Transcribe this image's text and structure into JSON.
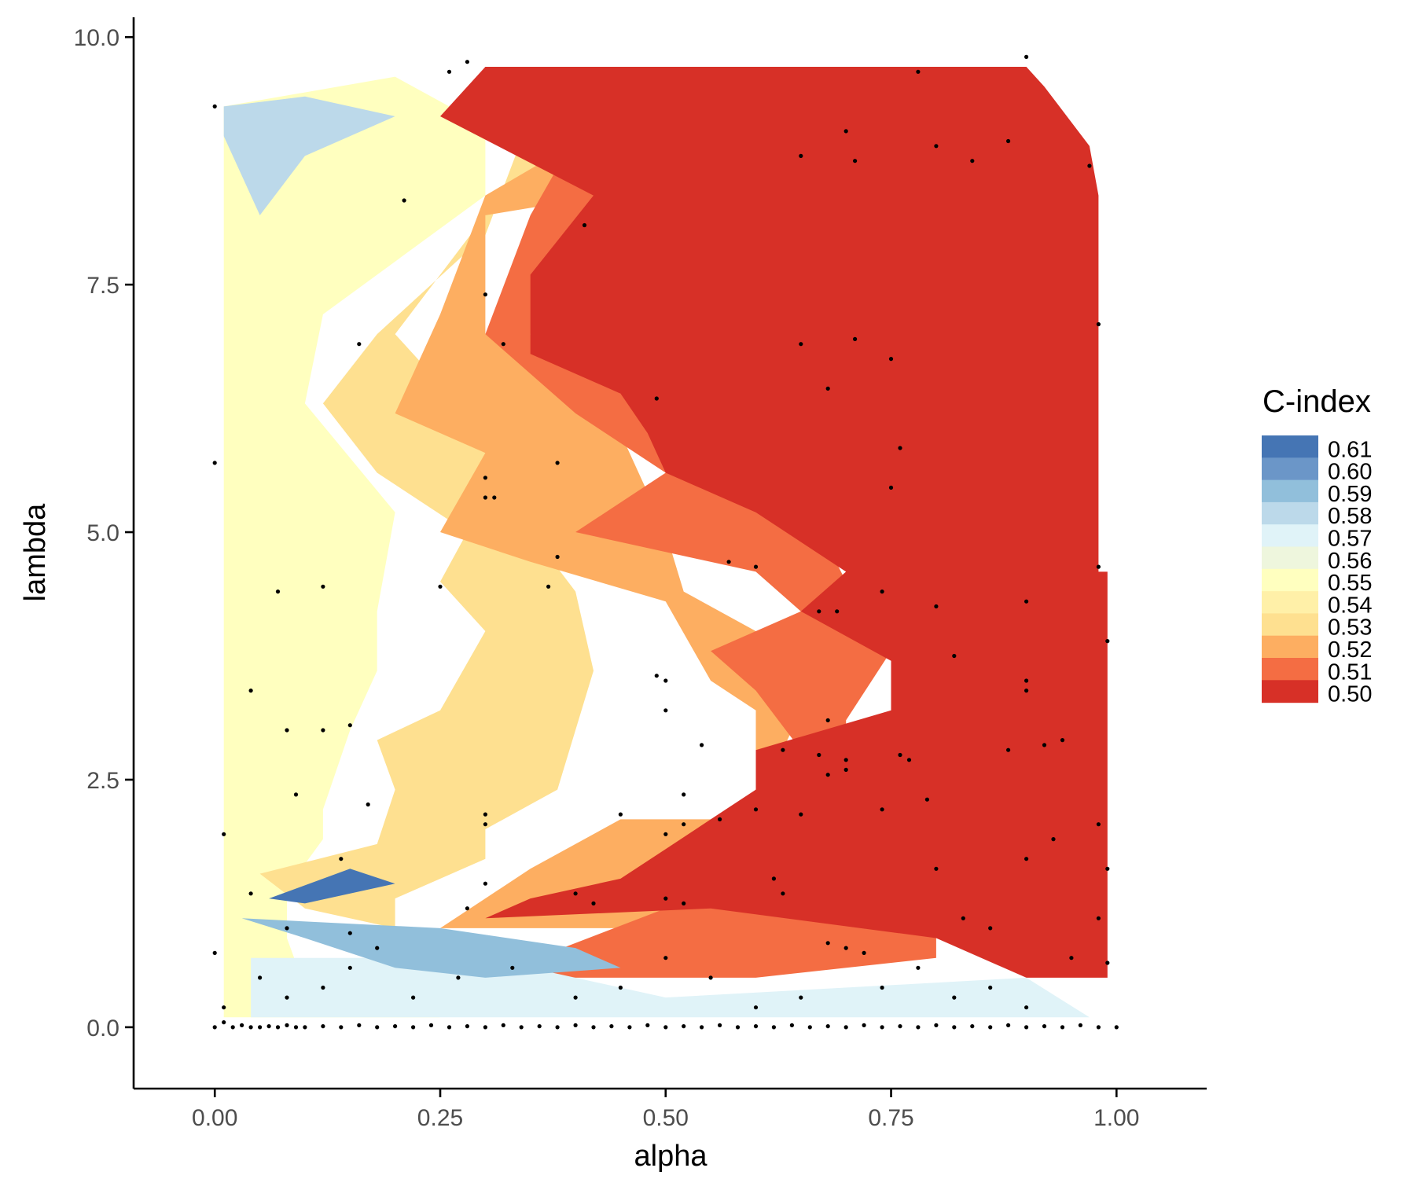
{
  "chart_data": {
    "type": "heatmap",
    "subtype": "filled contour with scatter points",
    "title": "",
    "xlabel": "alpha",
    "ylabel": "lambda",
    "xlim": [
      -0.09,
      1.1
    ],
    "ylim": [
      -0.62,
      10.2
    ],
    "x_ticks": [
      0.0,
      0.25,
      0.5,
      0.75,
      1.0
    ],
    "x_tick_labels": [
      "0.00",
      "0.25",
      "0.50",
      "0.75",
      "1.00"
    ],
    "y_ticks": [
      0.0,
      2.5,
      5.0,
      7.5,
      10.0
    ],
    "y_tick_labels": [
      "0.0",
      "2.5",
      "5.0",
      "7.5",
      "10.0"
    ],
    "grid": false,
    "legend": {
      "title": "C-index",
      "placement": "right",
      "levels": [
        {
          "label": "0.61",
          "color": "#4575b4"
        },
        {
          "label": "0.60",
          "color": "#6b96c8"
        },
        {
          "label": "0.59",
          "color": "#91bfdb"
        },
        {
          "label": "0.58",
          "color": "#bcd9ea"
        },
        {
          "label": "0.57",
          "color": "#e0f3f8"
        },
        {
          "label": "0.56",
          "color": "#eef6dd"
        },
        {
          "label": "0.55",
          "color": "#ffffbf"
        },
        {
          "label": "0.54",
          "color": "#fff0a8"
        },
        {
          "label": "0.53",
          "color": "#fee090"
        },
        {
          "label": "0.52",
          "color": "#fdae61"
        },
        {
          "label": "0.51",
          "color": "#f46d43"
        },
        {
          "label": "0.50",
          "color": "#d73027"
        }
      ]
    },
    "contour_bands": [
      {
        "level": "0.55",
        "color": "#ffffbf",
        "polygon": [
          [
            0.01,
            0.1
          ],
          [
            0.01,
            9.3
          ],
          [
            0.2,
            9.6
          ],
          [
            0.3,
            9.1
          ],
          [
            0.3,
            8.4
          ],
          [
            0.12,
            7.2
          ],
          [
            0.1,
            6.3
          ],
          [
            0.2,
            5.2
          ],
          [
            0.18,
            4.2
          ],
          [
            0.18,
            3.6
          ],
          [
            0.15,
            3.0
          ],
          [
            0.12,
            2.2
          ],
          [
            0.12,
            1.9
          ],
          [
            0.08,
            1.4
          ],
          [
            0.08,
            0.9
          ],
          [
            0.1,
            0.4
          ],
          [
            0.2,
            0.2
          ],
          [
            0.25,
            0.1
          ]
        ]
      },
      {
        "level": "0.53",
        "color": "#fee090",
        "polygon": [
          [
            0.05,
            1.55
          ],
          [
            0.18,
            1.85
          ],
          [
            0.2,
            2.4
          ],
          [
            0.18,
            2.9
          ],
          [
            0.25,
            3.2
          ],
          [
            0.3,
            4.0
          ],
          [
            0.25,
            4.5
          ],
          [
            0.28,
            5.0
          ],
          [
            0.18,
            5.6
          ],
          [
            0.12,
            6.3
          ],
          [
            0.18,
            7.0
          ],
          [
            0.3,
            8.0
          ],
          [
            0.35,
            9.2
          ],
          [
            0.6,
            9.1
          ],
          [
            0.5,
            8.9
          ],
          [
            0.3,
            8.2
          ],
          [
            0.2,
            7.0
          ],
          [
            0.3,
            6.0
          ],
          [
            0.35,
            5.0
          ],
          [
            0.4,
            4.4
          ],
          [
            0.42,
            3.6
          ],
          [
            0.38,
            2.4
          ],
          [
            0.3,
            2.0
          ],
          [
            0.3,
            1.7
          ],
          [
            0.2,
            1.3
          ],
          [
            0.2,
            1.0
          ],
          [
            0.1,
            1.2
          ]
        ]
      },
      {
        "level": "0.52",
        "color": "#fdae61",
        "polygon": [
          [
            0.25,
            1.0
          ],
          [
            0.35,
            1.6
          ],
          [
            0.45,
            2.1
          ],
          [
            0.6,
            2.1
          ],
          [
            0.6,
            3.2
          ],
          [
            0.55,
            3.5
          ],
          [
            0.5,
            4.3
          ],
          [
            0.35,
            4.7
          ],
          [
            0.25,
            5.0
          ],
          [
            0.3,
            5.8
          ],
          [
            0.2,
            6.2
          ],
          [
            0.25,
            7.2
          ],
          [
            0.3,
            8.4
          ],
          [
            0.45,
            9.2
          ],
          [
            0.62,
            9.3
          ],
          [
            0.7,
            9.0
          ],
          [
            0.5,
            8.5
          ],
          [
            0.3,
            8.2
          ],
          [
            0.3,
            7.0
          ],
          [
            0.45,
            6.0
          ],
          [
            0.5,
            5.0
          ],
          [
            0.52,
            4.4
          ],
          [
            0.6,
            4.0
          ],
          [
            0.65,
            3.2
          ],
          [
            0.62,
            2.6
          ],
          [
            0.6,
            2.0
          ],
          [
            0.5,
            1.6
          ],
          [
            0.5,
            1.0
          ]
        ]
      },
      {
        "level": "0.51",
        "color": "#f46d43",
        "polygon": [
          [
            0.3,
            0.5
          ],
          [
            0.5,
            1.2
          ],
          [
            0.6,
            1.6
          ],
          [
            0.55,
            2.0
          ],
          [
            0.6,
            2.4
          ],
          [
            0.65,
            2.8
          ],
          [
            0.6,
            3.4
          ],
          [
            0.55,
            3.8
          ],
          [
            0.65,
            4.2
          ],
          [
            0.6,
            4.6
          ],
          [
            0.4,
            5.0
          ],
          [
            0.5,
            5.6
          ],
          [
            0.4,
            6.2
          ],
          [
            0.3,
            7.0
          ],
          [
            0.35,
            8.2
          ],
          [
            0.4,
            9.0
          ],
          [
            0.55,
            9.5
          ],
          [
            0.7,
            9.2
          ],
          [
            0.6,
            8.8
          ],
          [
            0.45,
            8.3
          ],
          [
            0.35,
            7.0
          ],
          [
            0.5,
            6.1
          ],
          [
            0.65,
            5.4
          ],
          [
            0.7,
            4.5
          ],
          [
            0.75,
            3.8
          ],
          [
            0.7,
            3.1
          ],
          [
            0.7,
            2.4
          ],
          [
            0.8,
            1.8
          ],
          [
            0.8,
            0.7
          ],
          [
            0.6,
            0.5
          ]
        ]
      },
      {
        "level": "0.50",
        "color": "#d73027",
        "polygon": [
          [
            0.3,
            1.1
          ],
          [
            0.55,
            1.2
          ],
          [
            0.8,
            0.9
          ],
          [
            0.9,
            0.5
          ],
          [
            0.99,
            0.5
          ],
          [
            0.99,
            4.6
          ],
          [
            0.98,
            4.6
          ],
          [
            0.98,
            8.4
          ],
          [
            0.97,
            8.9
          ],
          [
            0.92,
            9.5
          ],
          [
            0.9,
            9.7
          ],
          [
            0.3,
            9.7
          ],
          [
            0.25,
            9.2
          ],
          [
            0.42,
            8.4
          ],
          [
            0.35,
            7.6
          ],
          [
            0.35,
            6.8
          ],
          [
            0.45,
            6.4
          ],
          [
            0.48,
            6.0
          ],
          [
            0.5,
            5.6
          ],
          [
            0.6,
            5.2
          ],
          [
            0.7,
            4.6
          ],
          [
            0.65,
            4.2
          ],
          [
            0.75,
            3.7
          ],
          [
            0.75,
            3.2
          ],
          [
            0.6,
            2.8
          ],
          [
            0.6,
            2.4
          ],
          [
            0.55,
            2.1
          ],
          [
            0.5,
            1.8
          ],
          [
            0.45,
            1.5
          ],
          [
            0.35,
            1.3
          ]
        ]
      },
      {
        "level": "0.57",
        "color": "#e0f3f8",
        "polygon": [
          [
            0.04,
            0.1
          ],
          [
            0.04,
            0.7
          ],
          [
            0.3,
            0.7
          ],
          [
            0.5,
            0.3
          ],
          [
            0.9,
            0.5
          ],
          [
            0.97,
            0.1
          ]
        ]
      },
      {
        "level": "0.59",
        "color": "#91bfdb",
        "polygon": [
          [
            0.03,
            1.1
          ],
          [
            0.25,
            1.0
          ],
          [
            0.4,
            0.8
          ],
          [
            0.45,
            0.6
          ],
          [
            0.3,
            0.5
          ],
          [
            0.2,
            0.6
          ],
          [
            0.1,
            0.9
          ]
        ]
      },
      {
        "level": "0.61",
        "color": "#4575b4",
        "polygon": [
          [
            0.06,
            1.3
          ],
          [
            0.15,
            1.6
          ],
          [
            0.2,
            1.45
          ],
          [
            0.1,
            1.25
          ]
        ]
      },
      {
        "level": "0.58",
        "color": "#bcd9ea",
        "polygon": [
          [
            0.01,
            9.0
          ],
          [
            0.01,
            9.3
          ],
          [
            0.1,
            9.4
          ],
          [
            0.2,
            9.2
          ],
          [
            0.1,
            8.8
          ],
          [
            0.05,
            8.2
          ]
        ]
      }
    ],
    "scatter_points": [
      [
        0.0,
        0.0
      ],
      [
        0.01,
        0.05
      ],
      [
        0.02,
        0.0
      ],
      [
        0.03,
        0.02
      ],
      [
        0.04,
        0.0
      ],
      [
        0.05,
        0.0
      ],
      [
        0.06,
        0.01
      ],
      [
        0.07,
        0.0
      ],
      [
        0.08,
        0.02
      ],
      [
        0.09,
        0.0
      ],
      [
        0.1,
        0.0
      ],
      [
        0.12,
        0.01
      ],
      [
        0.14,
        0.0
      ],
      [
        0.16,
        0.02
      ],
      [
        0.18,
        0.0
      ],
      [
        0.2,
        0.01
      ],
      [
        0.22,
        0.0
      ],
      [
        0.24,
        0.02
      ],
      [
        0.26,
        0.0
      ],
      [
        0.28,
        0.01
      ],
      [
        0.3,
        0.0
      ],
      [
        0.32,
        0.02
      ],
      [
        0.34,
        0.0
      ],
      [
        0.36,
        0.01
      ],
      [
        0.38,
        0.0
      ],
      [
        0.4,
        0.02
      ],
      [
        0.42,
        0.0
      ],
      [
        0.44,
        0.01
      ],
      [
        0.46,
        0.0
      ],
      [
        0.48,
        0.02
      ],
      [
        0.5,
        0.0
      ],
      [
        0.52,
        0.01
      ],
      [
        0.54,
        0.0
      ],
      [
        0.56,
        0.02
      ],
      [
        0.58,
        0.0
      ],
      [
        0.6,
        0.01
      ],
      [
        0.62,
        0.0
      ],
      [
        0.64,
        0.02
      ],
      [
        0.66,
        0.0
      ],
      [
        0.68,
        0.01
      ],
      [
        0.7,
        0.0
      ],
      [
        0.72,
        0.02
      ],
      [
        0.74,
        0.0
      ],
      [
        0.76,
        0.01
      ],
      [
        0.78,
        0.0
      ],
      [
        0.8,
        0.02
      ],
      [
        0.82,
        0.0
      ],
      [
        0.84,
        0.01
      ],
      [
        0.86,
        0.0
      ],
      [
        0.88,
        0.02
      ],
      [
        0.9,
        0.0
      ],
      [
        0.92,
        0.01
      ],
      [
        0.94,
        0.0
      ],
      [
        0.96,
        0.02
      ],
      [
        0.98,
        0.0
      ],
      [
        1.0,
        0.0
      ],
      [
        0.01,
        0.2
      ],
      [
        0.05,
        0.5
      ],
      [
        0.08,
        0.3
      ],
      [
        0.12,
        0.4
      ],
      [
        0.15,
        0.6
      ],
      [
        0.18,
        0.8
      ],
      [
        0.22,
        0.3
      ],
      [
        0.27,
        0.5
      ],
      [
        0.33,
        0.6
      ],
      [
        0.4,
        0.3
      ],
      [
        0.45,
        0.4
      ],
      [
        0.5,
        0.7
      ],
      [
        0.55,
        0.5
      ],
      [
        0.6,
        0.2
      ],
      [
        0.65,
        0.3
      ],
      [
        0.7,
        0.8
      ],
      [
        0.74,
        0.4
      ],
      [
        0.78,
        0.6
      ],
      [
        0.82,
        0.3
      ],
      [
        0.86,
        0.4
      ],
      [
        0.9,
        0.2
      ],
      [
        0.95,
        0.7
      ],
      [
        0.99,
        0.65
      ],
      [
        0.0,
        0.75
      ],
      [
        0.08,
        1.0
      ],
      [
        0.14,
        1.7
      ],
      [
        0.04,
        1.35
      ],
      [
        0.15,
        0.95
      ],
      [
        0.28,
        1.2
      ],
      [
        0.3,
        1.45
      ],
      [
        0.4,
        1.35
      ],
      [
        0.42,
        1.25
      ],
      [
        0.5,
        1.3
      ],
      [
        0.52,
        1.25
      ],
      [
        0.62,
        1.5
      ],
      [
        0.63,
        1.35
      ],
      [
        0.68,
        0.85
      ],
      [
        0.72,
        0.75
      ],
      [
        0.8,
        1.6
      ],
      [
        0.83,
        1.1
      ],
      [
        0.86,
        1.0
      ],
      [
        0.9,
        1.7
      ],
      [
        0.93,
        1.9
      ],
      [
        0.98,
        1.1
      ],
      [
        0.99,
        1.6
      ],
      [
        0.01,
        1.95
      ],
      [
        0.09,
        2.35
      ],
      [
        0.17,
        2.25
      ],
      [
        0.3,
        2.15
      ],
      [
        0.3,
        2.05
      ],
      [
        0.45,
        2.15
      ],
      [
        0.5,
        1.95
      ],
      [
        0.52,
        2.05
      ],
      [
        0.52,
        2.35
      ],
      [
        0.56,
        2.1
      ],
      [
        0.6,
        2.2
      ],
      [
        0.65,
        2.15
      ],
      [
        0.68,
        2.55
      ],
      [
        0.7,
        2.6
      ],
      [
        0.74,
        2.2
      ],
      [
        0.77,
        2.7
      ],
      [
        0.79,
        2.3
      ],
      [
        0.88,
        2.8
      ],
      [
        0.92,
        2.85
      ],
      [
        0.98,
        2.05
      ],
      [
        0.04,
        3.4
      ],
      [
        0.08,
        3.0
      ],
      [
        0.12,
        3.0
      ],
      [
        0.15,
        3.05
      ],
      [
        0.49,
        3.55
      ],
      [
        0.5,
        3.5
      ],
      [
        0.5,
        3.2
      ],
      [
        0.54,
        2.85
      ],
      [
        0.63,
        2.8
      ],
      [
        0.67,
        2.75
      ],
      [
        0.68,
        3.1
      ],
      [
        0.7,
        2.7
      ],
      [
        0.76,
        2.75
      ],
      [
        0.82,
        3.75
      ],
      [
        0.9,
        3.5
      ],
      [
        0.9,
        3.4
      ],
      [
        0.94,
        2.9
      ],
      [
        0.99,
        3.9
      ],
      [
        0.07,
        4.4
      ],
      [
        0.12,
        4.45
      ],
      [
        0.25,
        4.45
      ],
      [
        0.37,
        4.45
      ],
      [
        0.38,
        4.75
      ],
      [
        0.57,
        4.7
      ],
      [
        0.6,
        4.65
      ],
      [
        0.67,
        4.2
      ],
      [
        0.69,
        4.2
      ],
      [
        0.74,
        4.4
      ],
      [
        0.8,
        4.25
      ],
      [
        0.9,
        4.3
      ],
      [
        0.98,
        4.65
      ],
      [
        0.0,
        5.7
      ],
      [
        0.3,
        5.55
      ],
      [
        0.3,
        5.35
      ],
      [
        0.31,
        5.35
      ],
      [
        0.38,
        5.7
      ],
      [
        0.75,
        5.45
      ],
      [
        0.76,
        5.85
      ],
      [
        0.16,
        6.9
      ],
      [
        0.32,
        6.9
      ],
      [
        0.49,
        6.35
      ],
      [
        0.65,
        6.9
      ],
      [
        0.68,
        6.45
      ],
      [
        0.71,
        6.95
      ],
      [
        0.75,
        6.75
      ],
      [
        0.3,
        7.4
      ],
      [
        0.98,
        7.1
      ],
      [
        0.21,
        8.35
      ],
      [
        0.41,
        8.1
      ],
      [
        0.0,
        9.3
      ],
      [
        0.26,
        9.65
      ],
      [
        0.28,
        9.75
      ],
      [
        0.65,
        8.8
      ],
      [
        0.7,
        9.05
      ],
      [
        0.71,
        8.75
      ],
      [
        0.8,
        8.9
      ],
      [
        0.84,
        8.75
      ],
      [
        0.88,
        8.95
      ],
      [
        0.9,
        9.8
      ],
      [
        0.97,
        8.7
      ],
      [
        0.78,
        9.65
      ]
    ]
  }
}
